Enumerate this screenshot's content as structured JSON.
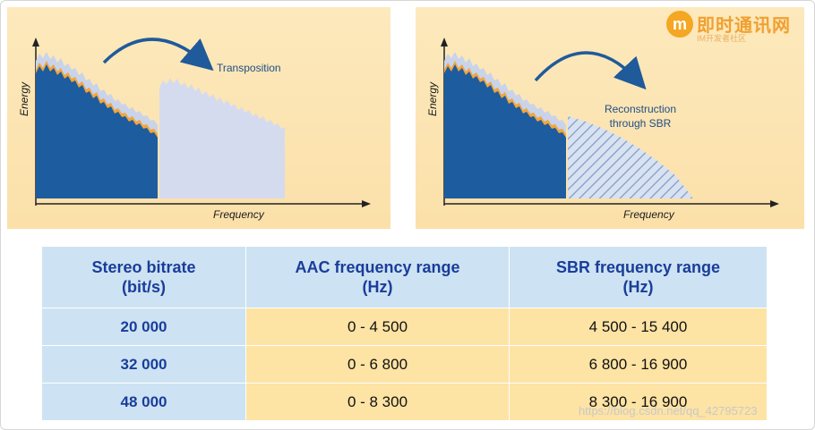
{
  "diagrams": {
    "left": {
      "y_axis_label": "Energy",
      "x_axis_label": "Frequency",
      "annotation": "Transposition"
    },
    "right": {
      "y_axis_label": "Energy",
      "x_axis_label": "Frequency",
      "annotation_line1": "Reconstruction",
      "annotation_line2": "through SBR"
    },
    "colors": {
      "background": "#fbe3ad",
      "low_band": "#1d5c9e",
      "envelope_orange": "#f2a53c",
      "envelope_light": "#c9d3ea",
      "transposed_band": "#d5dbee",
      "hatched_band": "#8aa6cf",
      "arrow": "#1f5a9a"
    }
  },
  "table": {
    "headers": [
      {
        "line1": "Stereo bitrate",
        "line2": "(bit/s)"
      },
      {
        "line1": "AAC frequency range",
        "line2": "(Hz)"
      },
      {
        "line1": "SBR frequency range",
        "line2": "(Hz)"
      }
    ],
    "rows": [
      {
        "bitrate": "20 000",
        "aac": "0 - 4 500",
        "sbr": "4 500 - 15 400"
      },
      {
        "bitrate": "32 000",
        "aac": "0 - 6 800",
        "sbr": "6 800 - 16 900"
      },
      {
        "bitrate": "48 000",
        "aac": "0 - 8 300",
        "sbr": "8 300 - 16 900"
      }
    ],
    "colors": {
      "header_bg": "#cde3f3",
      "header_text": "#1a3d9a",
      "range_bg": "#fde3a4"
    }
  },
  "logo": {
    "mark": "m",
    "title": "即时通讯网",
    "subtitle": "IM开发者社区"
  },
  "watermark": "https://blog.csdn.net/qq_42795723"
}
